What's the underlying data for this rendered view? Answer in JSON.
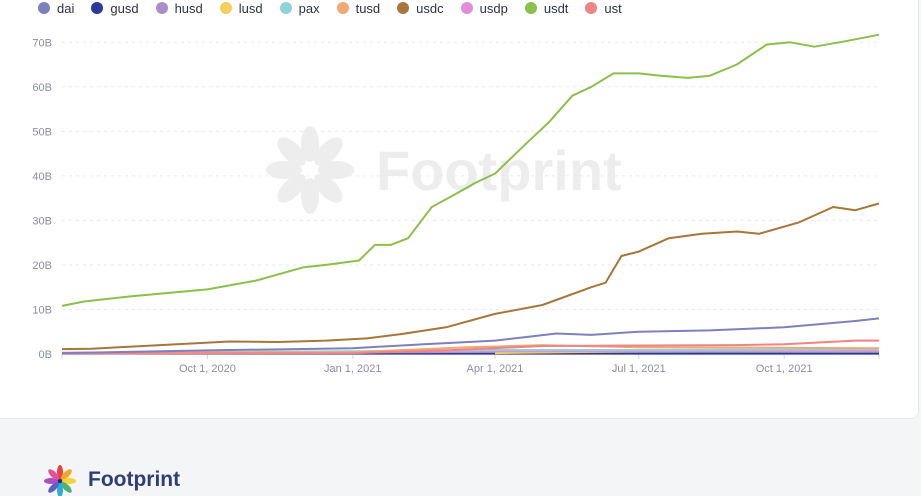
{
  "faded_header": "· · · · ·",
  "brand": {
    "name": "Footprint",
    "watermark": "Footprint"
  },
  "chart_data": {
    "type": "line",
    "title": "",
    "xlabel": "",
    "ylabel": "",
    "ylim": [
      0,
      75
    ],
    "y_ticks": [
      "0B",
      "10B",
      "20B",
      "30B",
      "40B",
      "50B",
      "60B",
      "70B"
    ],
    "x_tick_labels": [
      "Oct 1, 2020",
      "Jan 1, 2021",
      "Apr 1, 2021",
      "Jul 1, 2021",
      "Oct 1, 2021"
    ],
    "x_range": [
      "2020-07-01",
      "2021-11-30"
    ],
    "unit": "B",
    "grid": true,
    "legend_position": "top-left",
    "series": [
      {
        "name": "dai",
        "color": "#7f7fbf",
        "points": [
          [
            "2020-07-01",
            0.2
          ],
          [
            "2020-10-01",
            0.8
          ],
          [
            "2021-01-01",
            1.3
          ],
          [
            "2021-02-15",
            2.2
          ],
          [
            "2021-04-01",
            3.0
          ],
          [
            "2021-05-10",
            4.6
          ],
          [
            "2021-06-01",
            4.3
          ],
          [
            "2021-07-01",
            5.0
          ],
          [
            "2021-08-15",
            5.3
          ],
          [
            "2021-10-01",
            6.0
          ],
          [
            "2021-11-15",
            7.4
          ],
          [
            "2021-11-30",
            8.0
          ]
        ]
      },
      {
        "name": "gusd",
        "color": "#2a3a9c",
        "points": [
          [
            "2020-07-01",
            0.1
          ],
          [
            "2021-11-30",
            0.1
          ]
        ]
      },
      {
        "name": "husd",
        "color": "#a98ec7",
        "points": [
          [
            "2020-07-01",
            0.2
          ],
          [
            "2021-02-01",
            0.4
          ],
          [
            "2021-06-01",
            0.6
          ],
          [
            "2021-11-30",
            0.5
          ]
        ]
      },
      {
        "name": "lusd",
        "color": "#f2cf5b",
        "points": [
          [
            "2021-04-01",
            0.2
          ],
          [
            "2021-07-01",
            0.6
          ],
          [
            "2021-11-30",
            0.8
          ]
        ]
      },
      {
        "name": "pax",
        "color": "#8fd3d6",
        "points": [
          [
            "2020-07-01",
            0.3
          ],
          [
            "2021-01-01",
            0.6
          ],
          [
            "2021-04-01",
            0.9
          ],
          [
            "2021-07-01",
            0.9
          ],
          [
            "2021-11-30",
            1.0
          ]
        ]
      },
      {
        "name": "tusd",
        "color": "#f0a875",
        "points": [
          [
            "2020-07-01",
            0.3
          ],
          [
            "2021-01-01",
            0.4
          ],
          [
            "2021-03-15",
            1.5
          ],
          [
            "2021-05-01",
            2.0
          ],
          [
            "2021-07-01",
            1.5
          ],
          [
            "2021-11-30",
            1.3
          ]
        ]
      },
      {
        "name": "usdc",
        "color": "#a8753a",
        "points": [
          [
            "2020-07-01",
            1.1
          ],
          [
            "2020-07-20",
            1.2
          ],
          [
            "2020-09-01",
            2.0
          ],
          [
            "2020-10-15",
            2.8
          ],
          [
            "2020-11-15",
            2.7
          ],
          [
            "2020-12-15",
            3.0
          ],
          [
            "2021-01-10",
            3.5
          ],
          [
            "2021-02-01",
            4.5
          ],
          [
            "2021-03-01",
            6.0
          ],
          [
            "2021-04-01",
            9.0
          ],
          [
            "2021-05-01",
            11.0
          ],
          [
            "2021-06-01",
            15.0
          ],
          [
            "2021-06-10",
            16.0
          ],
          [
            "2021-06-20",
            22.0
          ],
          [
            "2021-07-01",
            23.0
          ],
          [
            "2021-07-20",
            26.0
          ],
          [
            "2021-08-10",
            27.0
          ],
          [
            "2021-09-01",
            27.5
          ],
          [
            "2021-09-15",
            27.0
          ],
          [
            "2021-10-10",
            29.5
          ],
          [
            "2021-11-01",
            33.0
          ],
          [
            "2021-11-15",
            32.3
          ],
          [
            "2021-11-30",
            33.8
          ]
        ]
      },
      {
        "name": "usdp",
        "color": "#e58cd9",
        "points": [
          [
            "2021-02-01",
            0.6
          ],
          [
            "2021-11-30",
            0.7
          ]
        ]
      },
      {
        "name": "usdt",
        "color": "#8cbf4c",
        "points": [
          [
            "2020-07-01",
            10.8
          ],
          [
            "2020-07-15",
            11.8
          ],
          [
            "2020-08-15",
            13.0
          ],
          [
            "2020-10-01",
            14.5
          ],
          [
            "2020-11-01",
            16.5
          ],
          [
            "2020-12-01",
            19.5
          ],
          [
            "2020-12-15",
            20.0
          ],
          [
            "2021-01-05",
            21.0
          ],
          [
            "2021-01-15",
            24.5
          ],
          [
            "2021-01-25",
            24.5
          ],
          [
            "2021-02-05",
            26.0
          ],
          [
            "2021-02-20",
            33.0
          ],
          [
            "2021-03-05",
            35.5
          ],
          [
            "2021-03-20",
            38.5
          ],
          [
            "2021-04-01",
            40.5
          ],
          [
            "2021-04-20",
            47.0
          ],
          [
            "2021-05-05",
            52.0
          ],
          [
            "2021-05-20",
            58.0
          ],
          [
            "2021-06-01",
            60.0
          ],
          [
            "2021-06-15",
            63.0
          ],
          [
            "2021-07-01",
            63.0
          ],
          [
            "2021-07-15",
            62.5
          ],
          [
            "2021-08-01",
            62.0
          ],
          [
            "2021-08-15",
            62.5
          ],
          [
            "2021-09-01",
            65.0
          ],
          [
            "2021-09-20",
            69.5
          ],
          [
            "2021-10-05",
            70.0
          ],
          [
            "2021-10-20",
            69.0
          ],
          [
            "2021-11-05",
            70.0
          ],
          [
            "2021-11-20",
            71.0
          ],
          [
            "2021-11-30",
            71.7
          ]
        ]
      },
      {
        "name": "ust",
        "color": "#ee8484",
        "points": [
          [
            "2020-07-01",
            0.1
          ],
          [
            "2021-01-01",
            0.2
          ],
          [
            "2021-03-01",
            0.8
          ],
          [
            "2021-05-01",
            1.8
          ],
          [
            "2021-07-01",
            1.9
          ],
          [
            "2021-09-01",
            2.0
          ],
          [
            "2021-10-01",
            2.2
          ],
          [
            "2021-11-15",
            3.0
          ],
          [
            "2021-11-30",
            3.0
          ]
        ]
      }
    ]
  }
}
